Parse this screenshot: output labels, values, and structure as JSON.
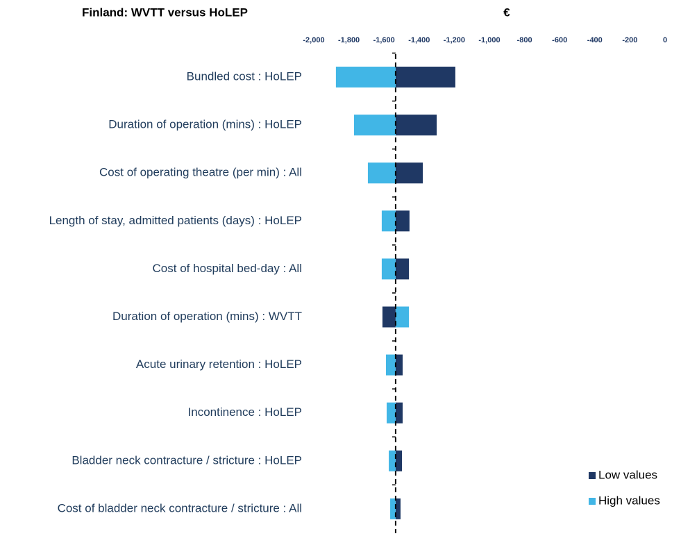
{
  "chart_data": {
    "type": "bar",
    "orientation": "horizontal",
    "title": "Finland: WVTT versus HoLEP",
    "x_label": "€",
    "categories": [
      "Bundled cost : HoLEP",
      "Duration of operation (mins) : HoLEP",
      "Cost of operating theatre (per min) : All",
      "Length of stay, admitted patients (days) : HoLEP",
      "Cost of hospital bed-day : All",
      "Duration of operation (mins) : WVTT",
      "Acute urinary retention : HoLEP",
      "Incontinence : HoLEP",
      "Bladder neck contracture / stricture : HoLEP",
      "Cost of bladder neck contracture / stricture : All"
    ],
    "base_value": -1534,
    "series": [
      {
        "name": "Low values",
        "color": "#1f3864",
        "values": [
          -1194,
          -1300,
          -1379,
          -1455,
          -1458,
          -1609,
          -1494,
          -1494,
          -1498,
          -1506
        ]
      },
      {
        "name": "High values",
        "color": "#41b6e6",
        "values": [
          -1874,
          -1771,
          -1692,
          -1613,
          -1613,
          -1458,
          -1589,
          -1585,
          -1573,
          -1565
        ]
      }
    ],
    "xlim": [
      -2000,
      0
    ],
    "xticks": [
      {
        "value": -2000,
        "label": "-2,000"
      },
      {
        "value": -1800,
        "label": "-1,800"
      },
      {
        "value": -1600,
        "label": "-1,600"
      },
      {
        "value": -1400,
        "label": "-1,400"
      },
      {
        "value": -1200,
        "label": "-1,200"
      },
      {
        "value": -1000,
        "label": "-1,000"
      },
      -800,
      -600,
      -400,
      -200,
      0
    ],
    "legend": "bottom-right"
  }
}
